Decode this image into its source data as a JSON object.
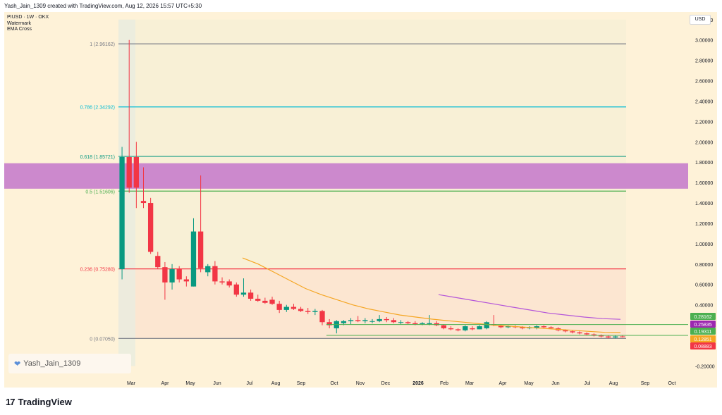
{
  "header": {
    "text": "Yash_Jain_1309 created with TradingView.com, Aug 12, 2026 15:57 UTC+5:30"
  },
  "legend": {
    "symbol": "PIUSD · 1W · OKX",
    "line2": "Watermark",
    "line3": "EMA Cross"
  },
  "currency": "USD",
  "watermark": {
    "icon": "heart-icon",
    "text": "Yash_Jain_1309"
  },
  "footer": {
    "logo": "TradingView"
  },
  "colors": {
    "background": "#fef2d8",
    "up": "#089981",
    "down": "#f23645",
    "ema": "#f5a623",
    "ema_slow": "#b455d9",
    "zone": "#c77dcc"
  },
  "price_axis": [
    "3.20000",
    "3.00000",
    "2.80000",
    "2.60000",
    "2.40000",
    "2.20000",
    "2.00000",
    "1.80000",
    "1.60000",
    "1.40000",
    "1.20000",
    "1.00000",
    "0.80000",
    "0.60000",
    "0.40000",
    "0.20000",
    "0.00000",
    "-0.20000"
  ],
  "time_axis": [
    "Mar",
    "Apr",
    "May",
    "Jun",
    "Jul",
    "Aug",
    "Sep",
    "Oct",
    "Nov",
    "Dec",
    "2026",
    "Feb",
    "Mar",
    "Apr",
    "May",
    "Jun",
    "Jul",
    "Aug",
    "Sep",
    "Oct"
  ],
  "fib_levels": [
    {
      "label": "1 (2.96162)",
      "value": 2.96162,
      "color": "#787b86"
    },
    {
      "label": "0.786 (2.34292)",
      "value": 2.34292,
      "color": "#00bcd4"
    },
    {
      "label": "0.618 (1.85721)",
      "value": 1.85721,
      "color": "#089981"
    },
    {
      "label": "0.5 (1.51606)",
      "value": 1.51606,
      "color": "#4caf50"
    },
    {
      "label": "0.236 (0.75280)",
      "value": 0.7528,
      "color": "#f23645"
    },
    {
      "label": "0 (0.07050)",
      "value": 0.0705,
      "color": "#787b86"
    }
  ],
  "zone": {
    "top": 1.79,
    "bottom": 1.54
  },
  "price_tags": [
    {
      "text": "0.28162",
      "value": 0.28162,
      "color": "#4caf50"
    },
    {
      "text": "0.25835",
      "value": 0.25835,
      "color": "#9c27b0"
    },
    {
      "text": "0.19311",
      "value": 0.19311,
      "color": "#4caf50"
    },
    {
      "text": "0.12851",
      "value": 0.12851,
      "color": "#f5a623"
    },
    {
      "text": "0.08883",
      "value": 0.08883,
      "color": "#f23645"
    }
  ],
  "chart_data": {
    "type": "candlestick",
    "symbol": "PIUSD",
    "timeframe": "1W",
    "exchange": "OKX",
    "ylim": [
      -0.2,
      3.2
    ],
    "candles": [
      {
        "o": 0.75,
        "h": 1.95,
        "l": 0.65,
        "c": 1.85
      },
      {
        "o": 1.85,
        "h": 3.0,
        "l": 1.5,
        "c": 1.55
      },
      {
        "o": 1.85,
        "h": 2.0,
        "l": 1.35,
        "c": 1.55
      },
      {
        "o": 1.42,
        "h": 1.75,
        "l": 1.35,
        "c": 1.4
      },
      {
        "o": 1.4,
        "h": 1.45,
        "l": 0.9,
        "c": 0.92
      },
      {
        "o": 0.88,
        "h": 0.92,
        "l": 0.75,
        "c": 0.77
      },
      {
        "o": 0.77,
        "h": 0.82,
        "l": 0.45,
        "c": 0.62
      },
      {
        "o": 0.62,
        "h": 0.8,
        "l": 0.55,
        "c": 0.75
      },
      {
        "o": 0.75,
        "h": 0.78,
        "l": 0.62,
        "c": 0.65
      },
      {
        "o": 0.65,
        "h": 0.68,
        "l": 0.58,
        "c": 0.63
      },
      {
        "o": 0.58,
        "h": 1.25,
        "l": 0.58,
        "c": 1.12
      },
      {
        "o": 1.12,
        "h": 1.67,
        "l": 0.72,
        "c": 0.76
      },
      {
        "o": 0.72,
        "h": 0.8,
        "l": 0.68,
        "c": 0.78
      },
      {
        "o": 0.78,
        "h": 0.83,
        "l": 0.6,
        "c": 0.63
      },
      {
        "o": 0.63,
        "h": 0.67,
        "l": 0.6,
        "c": 0.62
      },
      {
        "o": 0.63,
        "h": 0.65,
        "l": 0.57,
        "c": 0.59
      },
      {
        "o": 0.6,
        "h": 0.62,
        "l": 0.48,
        "c": 0.5
      },
      {
        "o": 0.5,
        "h": 0.66,
        "l": 0.48,
        "c": 0.52
      },
      {
        "o": 0.52,
        "h": 0.55,
        "l": 0.44,
        "c": 0.46
      },
      {
        "o": 0.46,
        "h": 0.5,
        "l": 0.43,
        "c": 0.44
      },
      {
        "o": 0.44,
        "h": 0.47,
        "l": 0.41,
        "c": 0.42
      },
      {
        "o": 0.45,
        "h": 0.48,
        "l": 0.4,
        "c": 0.41
      },
      {
        "o": 0.41,
        "h": 0.44,
        "l": 0.32,
        "c": 0.35
      },
      {
        "o": 0.35,
        "h": 0.4,
        "l": 0.33,
        "c": 0.38
      },
      {
        "o": 0.38,
        "h": 0.41,
        "l": 0.35,
        "c": 0.36
      },
      {
        "o": 0.36,
        "h": 0.38,
        "l": 0.33,
        "c": 0.34
      },
      {
        "o": 0.34,
        "h": 0.37,
        "l": 0.31,
        "c": 0.33
      },
      {
        "o": 0.33,
        "h": 0.36,
        "l": 0.3,
        "c": 0.34
      },
      {
        "o": 0.34,
        "h": 0.35,
        "l": 0.2,
        "c": 0.23
      },
      {
        "o": 0.23,
        "h": 0.26,
        "l": 0.17,
        "c": 0.2
      },
      {
        "o": 0.17,
        "h": 0.25,
        "l": 0.12,
        "c": 0.24
      },
      {
        "o": 0.22,
        "h": 0.25,
        "l": 0.2,
        "c": 0.24
      },
      {
        "o": 0.24,
        "h": 0.27,
        "l": 0.21,
        "c": 0.25
      },
      {
        "o": 0.25,
        "h": 0.29,
        "l": 0.23,
        "c": 0.24
      },
      {
        "o": 0.24,
        "h": 0.27,
        "l": 0.22,
        "c": 0.25
      },
      {
        "o": 0.24,
        "h": 0.26,
        "l": 0.22,
        "c": 0.24
      },
      {
        "o": 0.24,
        "h": 0.3,
        "l": 0.23,
        "c": 0.26
      },
      {
        "o": 0.26,
        "h": 0.28,
        "l": 0.23,
        "c": 0.25
      },
      {
        "o": 0.25,
        "h": 0.27,
        "l": 0.22,
        "c": 0.23
      },
      {
        "o": 0.23,
        "h": 0.25,
        "l": 0.21,
        "c": 0.23
      },
      {
        "o": 0.23,
        "h": 0.24,
        "l": 0.21,
        "c": 0.22
      },
      {
        "o": 0.22,
        "h": 0.24,
        "l": 0.2,
        "c": 0.21
      },
      {
        "o": 0.21,
        "h": 0.23,
        "l": 0.2,
        "c": 0.22
      },
      {
        "o": 0.21,
        "h": 0.3,
        "l": 0.2,
        "c": 0.22
      },
      {
        "o": 0.22,
        "h": 0.24,
        "l": 0.19,
        "c": 0.2
      },
      {
        "o": 0.2,
        "h": 0.21,
        "l": 0.16,
        "c": 0.17
      },
      {
        "o": 0.17,
        "h": 0.19,
        "l": 0.15,
        "c": 0.16
      },
      {
        "o": 0.16,
        "h": 0.17,
        "l": 0.14,
        "c": 0.15
      },
      {
        "o": 0.15,
        "h": 0.2,
        "l": 0.14,
        "c": 0.19
      },
      {
        "o": 0.17,
        "h": 0.19,
        "l": 0.15,
        "c": 0.16
      },
      {
        "o": 0.16,
        "h": 0.2,
        "l": 0.16,
        "c": 0.19
      },
      {
        "o": 0.17,
        "h": 0.24,
        "l": 0.16,
        "c": 0.23
      },
      {
        "o": 0.21,
        "h": 0.3,
        "l": 0.19,
        "c": 0.2
      },
      {
        "o": 0.2,
        "h": 0.21,
        "l": 0.17,
        "c": 0.18
      },
      {
        "o": 0.18,
        "h": 0.2,
        "l": 0.17,
        "c": 0.19
      },
      {
        "o": 0.19,
        "h": 0.2,
        "l": 0.17,
        "c": 0.18
      },
      {
        "o": 0.18,
        "h": 0.19,
        "l": 0.16,
        "c": 0.17
      },
      {
        "o": 0.17,
        "h": 0.19,
        "l": 0.16,
        "c": 0.18
      },
      {
        "o": 0.17,
        "h": 0.2,
        "l": 0.16,
        "c": 0.19
      },
      {
        "o": 0.19,
        "h": 0.2,
        "l": 0.17,
        "c": 0.18
      },
      {
        "o": 0.18,
        "h": 0.19,
        "l": 0.16,
        "c": 0.17
      },
      {
        "o": 0.17,
        "h": 0.18,
        "l": 0.14,
        "c": 0.15
      },
      {
        "o": 0.15,
        "h": 0.16,
        "l": 0.13,
        "c": 0.14
      },
      {
        "o": 0.14,
        "h": 0.15,
        "l": 0.12,
        "c": 0.13
      },
      {
        "o": 0.13,
        "h": 0.14,
        "l": 0.11,
        "c": 0.12
      },
      {
        "o": 0.12,
        "h": 0.13,
        "l": 0.1,
        "c": 0.11
      },
      {
        "o": 0.11,
        "h": 0.12,
        "l": 0.09,
        "c": 0.1
      },
      {
        "o": 0.1,
        "h": 0.11,
        "l": 0.08,
        "c": 0.09
      },
      {
        "o": 0.09,
        "h": 0.1,
        "l": 0.07,
        "c": 0.08
      },
      {
        "o": 0.08,
        "h": 0.1,
        "l": 0.07,
        "c": 0.09
      },
      {
        "o": 0.09,
        "h": 0.1,
        "l": 0.08,
        "c": 0.0888
      }
    ],
    "ema_fast": [
      0.86,
      0.8,
      0.72,
      0.64,
      0.56,
      0.5,
      0.45,
      0.4,
      0.36,
      0.33,
      0.3,
      0.28,
      0.26,
      0.245,
      0.23,
      0.215,
      0.2,
      0.19,
      0.18,
      0.17,
      0.16,
      0.15,
      0.14,
      0.13,
      0.128
    ],
    "ema_slow": [
      0.5,
      0.47,
      0.44,
      0.41,
      0.38,
      0.35,
      0.32,
      0.3,
      0.28,
      0.265,
      0.258
    ]
  }
}
